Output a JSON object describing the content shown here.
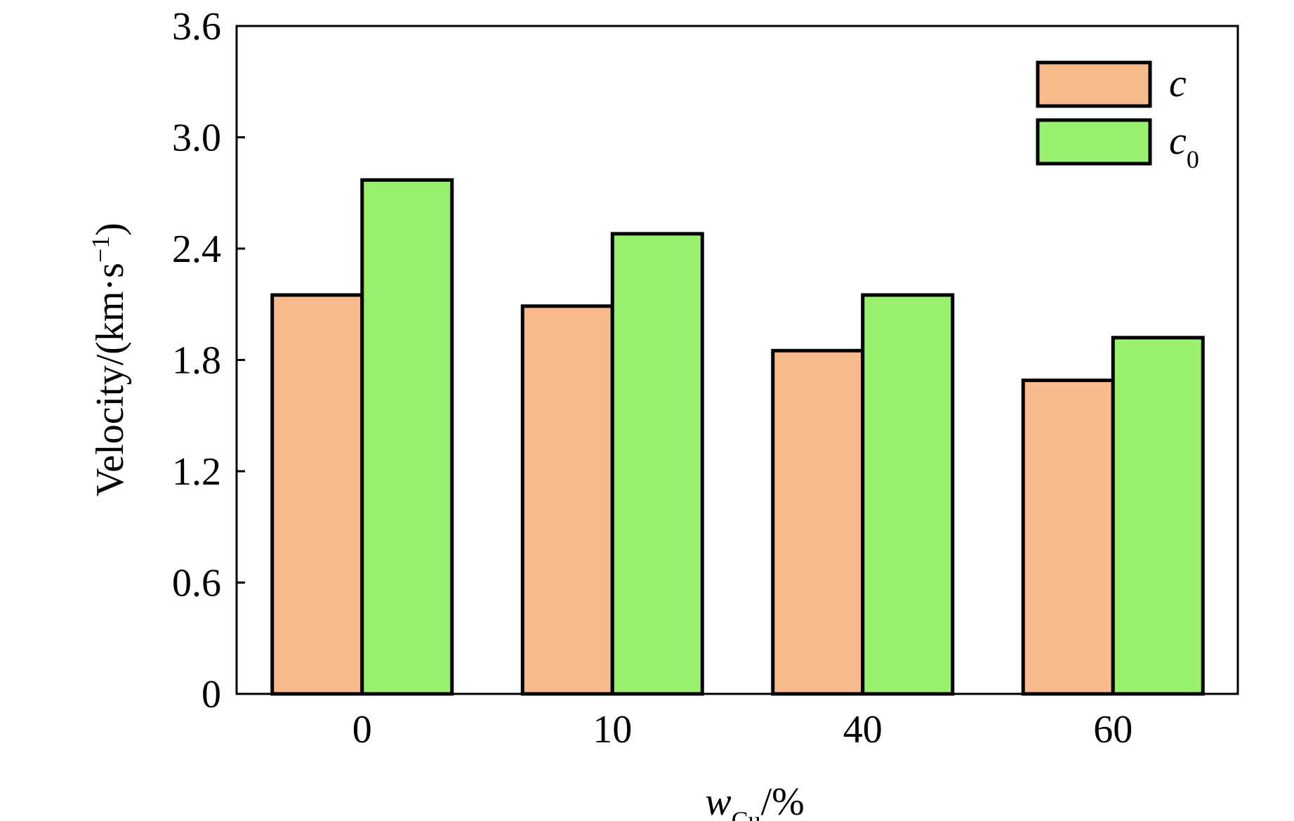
{
  "chart_data": {
    "type": "bar",
    "categories": [
      "0",
      "10",
      "40",
      "60"
    ],
    "series": [
      {
        "name": "c",
        "name_sub": "",
        "color": "#F9BB8E",
        "values": [
          2.15,
          2.09,
          1.85,
          1.69
        ]
      },
      {
        "name": "c",
        "name_sub": "0",
        "color": "#99F16E",
        "values": [
          2.77,
          2.48,
          2.15,
          1.92
        ]
      }
    ],
    "ylim": [
      0,
      3.6
    ],
    "yticks": [
      "0",
      "0.6",
      "1.2",
      "1.8",
      "2.4",
      "3.0",
      "3.6"
    ],
    "ytick_values": [
      0,
      0.6,
      1.2,
      1.8,
      2.4,
      3.0,
      3.6
    ],
    "ylabel": "Velocity/(km·s",
    "ylabel_sup": "−1",
    "ylabel_end": ")",
    "xlabel_main": "w",
    "xlabel_sub": "Cu",
    "xlabel_end": "/%",
    "legend_position": "top-right",
    "grid": false
  }
}
